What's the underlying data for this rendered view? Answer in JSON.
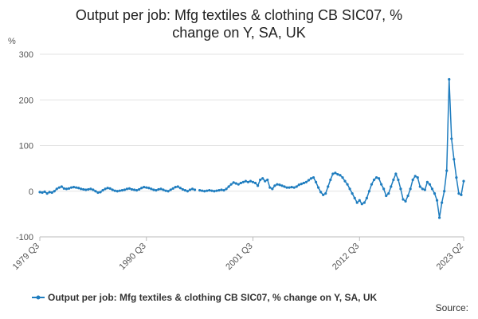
{
  "chart_data": {
    "type": "line",
    "title": "Output per job: Mfg textiles & clothing CB SIC07, % change on Y, SA, UK",
    "y_label": "%",
    "source": "Source:",
    "categories": [
      "1979 Q3",
      null,
      null,
      null,
      null,
      null,
      null,
      null,
      null,
      null,
      null,
      null,
      null,
      null,
      null,
      null,
      null,
      null,
      null,
      null,
      null,
      null,
      null,
      null,
      null,
      null,
      null,
      null,
      null,
      null,
      null,
      null,
      null,
      null,
      null,
      null,
      null,
      null,
      null,
      null,
      null,
      null,
      null,
      null,
      "1990 Q3",
      null,
      null,
      null,
      null,
      null,
      null,
      null,
      null,
      null,
      null,
      null,
      null,
      null,
      null,
      null,
      null,
      null,
      null,
      null,
      null,
      null,
      null,
      null,
      null,
      null,
      null,
      null,
      null,
      null,
      null,
      null,
      null,
      null,
      null,
      null,
      null,
      null,
      null,
      null,
      null,
      null,
      null,
      null,
      "2001 Q3",
      null,
      null,
      null,
      null,
      null,
      null,
      null,
      null,
      null,
      null,
      null,
      null,
      null,
      null,
      null,
      null,
      null,
      null,
      null,
      null,
      null,
      null,
      null,
      null,
      null,
      null,
      null,
      null,
      null,
      null,
      null,
      null,
      null,
      null,
      null,
      null,
      null,
      null,
      null,
      null,
      null,
      null,
      null,
      "2012 Q3",
      null,
      null,
      null,
      null,
      null,
      null,
      null,
      null,
      null,
      null,
      null,
      null,
      null,
      null,
      null,
      null,
      null,
      null,
      null,
      null,
      null,
      null,
      null,
      null,
      null,
      null,
      null,
      null,
      null,
      null,
      null,
      null,
      null,
      null,
      null,
      null,
      null,
      null,
      null,
      null,
      null,
      null,
      "2023 Q2"
    ],
    "series": [
      {
        "name": "Output per job: Mfg textiles & clothing CB SIC07, % change on Y, SA, UK",
        "color": "#1f7dbf",
        "values": [
          -2,
          -3,
          -1,
          -5,
          -2,
          -3,
          0,
          5,
          8,
          10,
          6,
          5,
          6,
          8,
          9,
          8,
          7,
          5,
          4,
          3,
          4,
          5,
          3,
          0,
          -3,
          -2,
          2,
          5,
          7,
          6,
          3,
          1,
          0,
          1,
          2,
          3,
          5,
          6,
          4,
          3,
          2,
          4,
          7,
          9,
          8,
          7,
          5,
          3,
          2,
          4,
          5,
          3,
          1,
          0,
          3,
          6,
          9,
          10,
          7,
          4,
          2,
          0,
          3,
          5,
          3,
          null,
          2,
          1,
          0,
          1,
          2,
          1,
          0,
          1,
          2,
          3,
          2,
          5,
          10,
          15,
          19,
          17,
          15,
          18,
          20,
          22,
          20,
          22,
          20,
          18,
          12,
          25,
          28,
          22,
          25,
          8,
          5,
          12,
          15,
          14,
          12,
          10,
          8,
          8,
          9,
          8,
          10,
          14,
          16,
          18,
          20,
          24,
          28,
          30,
          20,
          8,
          -2,
          -8,
          -5,
          10,
          25,
          38,
          40,
          37,
          35,
          30,
          22,
          15,
          5,
          -5,
          -15,
          -25,
          -20,
          -28,
          -25,
          -15,
          0,
          15,
          25,
          30,
          28,
          15,
          5,
          -10,
          -5,
          10,
          25,
          38,
          25,
          5,
          -18,
          -22,
          -10,
          5,
          25,
          33,
          30,
          10,
          5,
          3,
          20,
          15,
          5,
          -5,
          -20,
          -58,
          -25,
          0,
          45,
          245,
          115,
          70,
          30,
          -5,
          -8,
          22
        ]
      }
    ],
    "ylim": [
      -100,
      300
    ],
    "yticks": [
      -100,
      0,
      100,
      200,
      300
    ],
    "grid": true
  }
}
